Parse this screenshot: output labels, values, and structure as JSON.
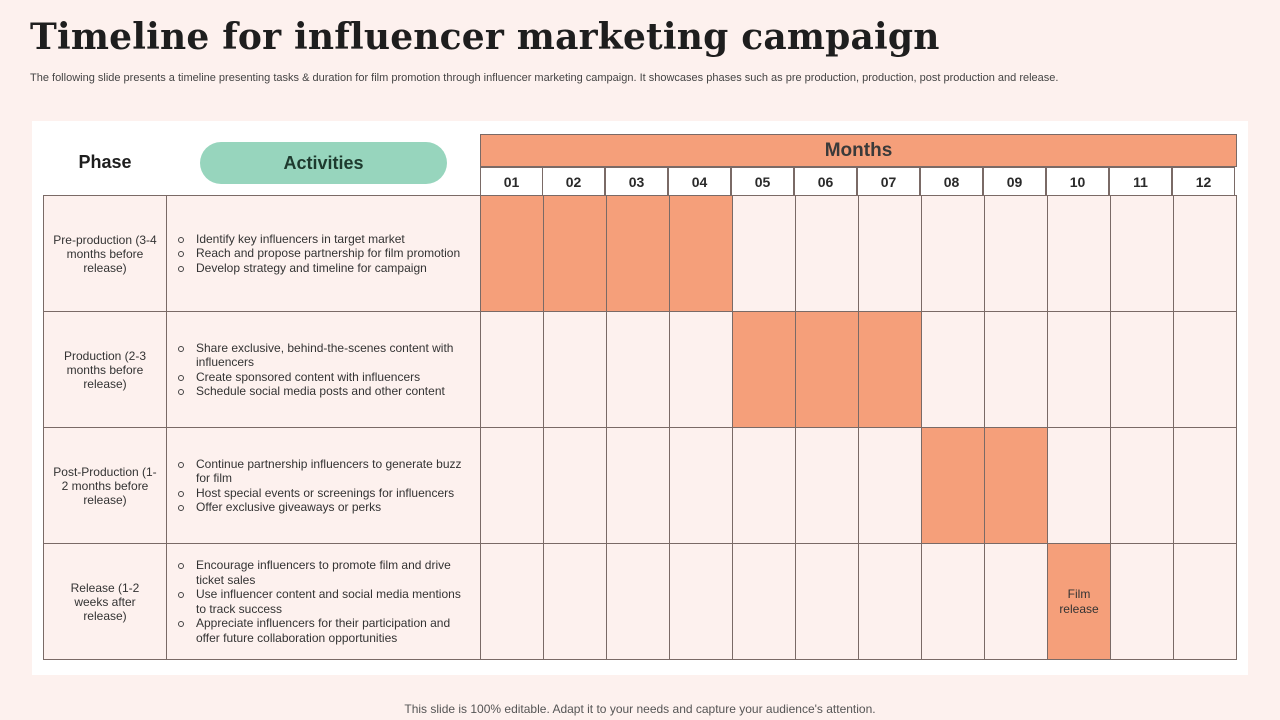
{
  "title": "Timeline for influencer marketing campaign",
  "subtitle": "The following slide presents a timeline presenting tasks & duration for film promotion through influencer marketing campaign. It showcases phases such as pre production, production, post production and release.",
  "headers": {
    "phase": "Phase",
    "activities": "Activities",
    "months": "Months"
  },
  "months": [
    "01",
    "02",
    "03",
    "04",
    "05",
    "06",
    "07",
    "08",
    "09",
    "10",
    "11",
    "12"
  ],
  "rows": [
    {
      "phase": "Pre-production (3-4 months before release)",
      "activities": [
        "Identify key influencers in target market",
        "Reach and propose partnership for film promotion",
        "Develop strategy and timeline for campaign"
      ],
      "active_months": [
        1,
        2,
        3,
        4
      ]
    },
    {
      "phase": "Production (2-3 months before release)",
      "activities": [
        "Share exclusive, behind-the-scenes content with influencers",
        "Create sponsored content with influencers",
        "Schedule social media posts and other content"
      ],
      "active_months": [
        5,
        6,
        7
      ]
    },
    {
      "phase": "Post-Production (1-2 months before release)",
      "activities": [
        "Continue partnership influencers to generate buzz for film",
        "Host special events or screenings for influencers",
        "Offer exclusive giveaways or perks"
      ],
      "active_months": [
        8,
        9
      ]
    },
    {
      "phase": "Release (1-2 weeks after release)",
      "activities": [
        "Encourage influencers to promote film and drive ticket sales",
        "Use influencer content and social media mentions to track success",
        "Appreciate influencers for their participation and offer future collaboration opportunities"
      ],
      "active_months": [
        10
      ],
      "cell_label": "Film release"
    }
  ],
  "colors": {
    "bar": "#f59f7a",
    "activities_pill": "#97d5bd",
    "background": "#fdf1ee"
  },
  "footer": "This slide is 100% editable. Adapt it to your needs and capture your audience's attention."
}
